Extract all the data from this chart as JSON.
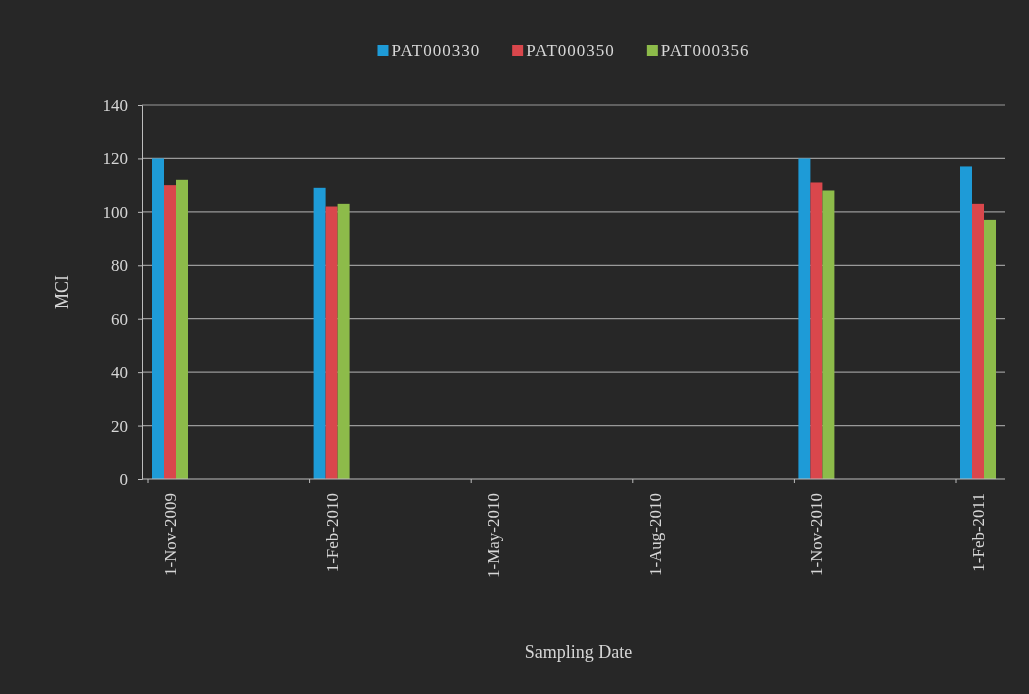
{
  "chart_data": {
    "type": "bar",
    "xlabel": "Sampling Date",
    "ylabel": "MCI",
    "categories": [
      "1-Nov-2009",
      "1-Feb-2010",
      "1-May-2010",
      "1-Aug-2010",
      "1-Nov-2010",
      "1-Feb-2011"
    ],
    "series": [
      {
        "name": "PAT000330",
        "color": "#1e9bd7",
        "values": [
          120,
          109,
          null,
          null,
          120,
          117
        ]
      },
      {
        "name": "PAT000350",
        "color": "#d9474c",
        "values": [
          110,
          102,
          null,
          null,
          111,
          103
        ]
      },
      {
        "name": "PAT000356",
        "color": "#8dbb4a",
        "values": [
          112,
          103,
          null,
          null,
          108,
          97
        ]
      }
    ],
    "ylim": [
      0,
      140
    ],
    "yticks": [
      0,
      20,
      40,
      60,
      80,
      100,
      120,
      140
    ],
    "grid": "y",
    "legend": "top"
  }
}
